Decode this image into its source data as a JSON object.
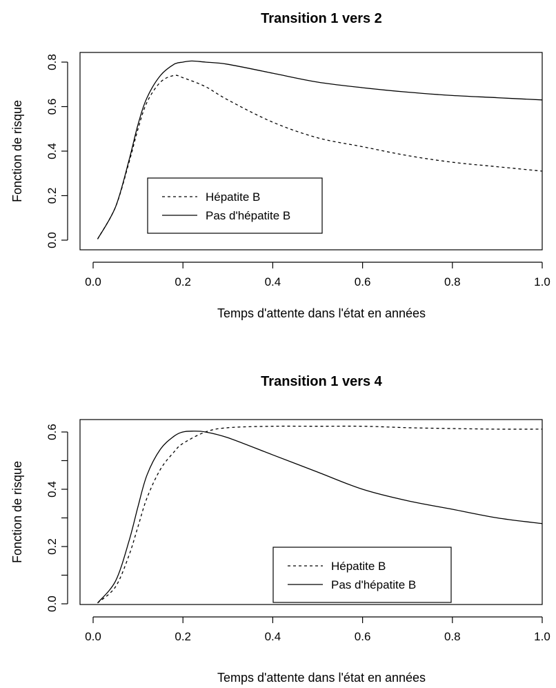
{
  "chart_data": [
    {
      "type": "line",
      "title": "Transition 1 vers 2",
      "xlabel": "Temps d'attente dans l'état en années",
      "ylabel": "Fonction de risque",
      "xlim": [
        0.0,
        1.0
      ],
      "ylim": [
        0.0,
        0.8
      ],
      "xticks": [
        "0.0",
        "0.2",
        "0.4",
        "0.6",
        "0.8",
        "1.0"
      ],
      "yticks": [
        "0.0",
        "0.2",
        "0.4",
        "0.6",
        "0.8"
      ],
      "legend_position": "bottom-center",
      "series": [
        {
          "name": "Hépatite B",
          "style": "dashed",
          "x": [
            0.01,
            0.05,
            0.08,
            0.1,
            0.12,
            0.15,
            0.18,
            0.2,
            0.25,
            0.3,
            0.4,
            0.5,
            0.6,
            0.7,
            0.8,
            0.9,
            1.0
          ],
          "y": [
            0.005,
            0.15,
            0.35,
            0.5,
            0.62,
            0.71,
            0.74,
            0.73,
            0.69,
            0.63,
            0.53,
            0.46,
            0.42,
            0.38,
            0.35,
            0.33,
            0.31
          ]
        },
        {
          "name": "Pas d'hépatite B",
          "style": "solid",
          "x": [
            0.01,
            0.05,
            0.08,
            0.1,
            0.12,
            0.15,
            0.18,
            0.2,
            0.22,
            0.25,
            0.3,
            0.4,
            0.5,
            0.6,
            0.7,
            0.8,
            0.9,
            1.0
          ],
          "y": [
            0.005,
            0.15,
            0.36,
            0.52,
            0.64,
            0.74,
            0.79,
            0.8,
            0.805,
            0.8,
            0.79,
            0.75,
            0.71,
            0.685,
            0.665,
            0.65,
            0.64,
            0.63
          ]
        }
      ]
    },
    {
      "type": "line",
      "title": "Transition 1 vers 4",
      "xlabel": "Temps d'attente dans l'état en années",
      "ylabel": "Fonction de risque",
      "xlim": [
        0.0,
        1.0
      ],
      "ylim": [
        0.0,
        0.6
      ],
      "xticks": [
        "0.0",
        "0.2",
        "0.4",
        "0.6",
        "0.8",
        "1.0"
      ],
      "yticks": [
        "0.0",
        "0.2",
        "0.4",
        "0.6"
      ],
      "legend_position": "bottom-right",
      "series": [
        {
          "name": "Hépatite B",
          "style": "dashed",
          "x": [
            0.01,
            0.05,
            0.08,
            0.1,
            0.12,
            0.15,
            0.18,
            0.2,
            0.25,
            0.3,
            0.4,
            0.5,
            0.6,
            0.7,
            0.8,
            0.9,
            1.0
          ],
          "y": [
            0.003,
            0.06,
            0.17,
            0.27,
            0.37,
            0.47,
            0.53,
            0.56,
            0.6,
            0.615,
            0.62,
            0.62,
            0.62,
            0.615,
            0.612,
            0.61,
            0.61
          ]
        },
        {
          "name": "Pas d'hépatite B",
          "style": "solid",
          "x": [
            0.01,
            0.05,
            0.08,
            0.1,
            0.12,
            0.15,
            0.18,
            0.2,
            0.22,
            0.25,
            0.3,
            0.4,
            0.5,
            0.6,
            0.7,
            0.8,
            0.9,
            1.0
          ],
          "y": [
            0.003,
            0.08,
            0.22,
            0.34,
            0.45,
            0.54,
            0.585,
            0.6,
            0.603,
            0.6,
            0.58,
            0.52,
            0.46,
            0.4,
            0.36,
            0.33,
            0.3,
            0.28
          ]
        }
      ]
    }
  ]
}
